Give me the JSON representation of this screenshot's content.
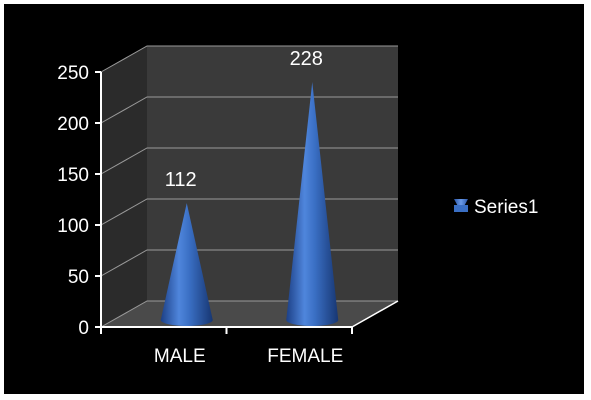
{
  "chart_data": {
    "type": "bar",
    "shape": "cone-3d",
    "categories": [
      "MALE",
      "FEMALE"
    ],
    "series": [
      {
        "name": "Series1",
        "values": [
          112,
          228
        ]
      }
    ],
    "data_labels": [
      "112",
      "228"
    ],
    "ylim": [
      0,
      250
    ],
    "yticks": [
      0,
      50,
      100,
      150,
      200,
      250
    ],
    "ytick_labels": [
      "0",
      "50",
      "100",
      "150",
      "200",
      "250"
    ],
    "grid": true,
    "legend": {
      "position": "right",
      "entries": [
        "Series1"
      ]
    },
    "colors": {
      "background": "#000000",
      "wall": "#3a3a3a",
      "side_wall": "#2b2b2b",
      "floor": "#4a4a4a",
      "gridline": "#9a9a9a",
      "axis": "#ffffff",
      "series1": "#3a6fc4"
    }
  }
}
